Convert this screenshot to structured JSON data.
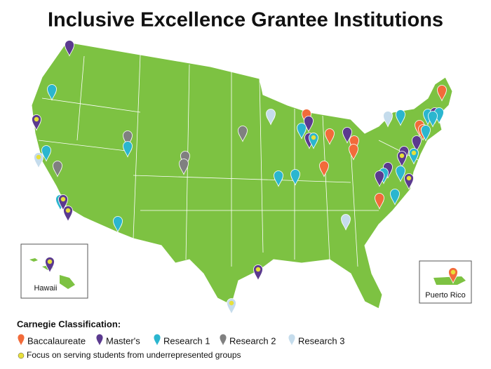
{
  "title": "Inclusive Excellence Grantee Institutions",
  "legend": {
    "heading": "Carnegie Classification:",
    "items": [
      {
        "label": "Baccalaureate",
        "color": "#f26b3a"
      },
      {
        "label": "Master's",
        "color": "#5b3a8f"
      },
      {
        "label": "Research 1",
        "color": "#2bb6cf"
      },
      {
        "label": "Research 2",
        "color": "#808080"
      },
      {
        "label": "Research 3",
        "color": "#c5dcec"
      }
    ],
    "focus_note": "Focus on serving students from underrepresented groups",
    "focus_color": "#e8e03a"
  },
  "insets": {
    "hawaii": "Hawaii",
    "puerto_rico": "Puerto Rico"
  }
}
